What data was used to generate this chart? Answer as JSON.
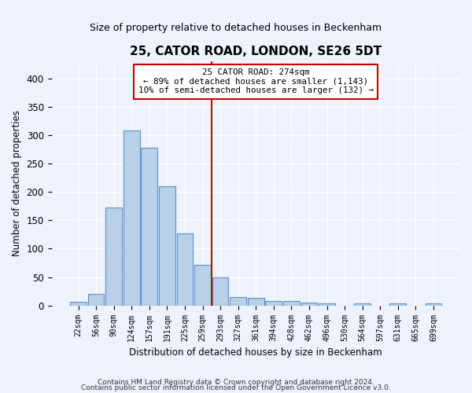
{
  "title": "25, CATOR ROAD, LONDON, SE26 5DT",
  "subtitle": "Size of property relative to detached houses in Beckenham",
  "xlabel": "Distribution of detached houses by size in Beckenham",
  "ylabel": "Number of detached properties",
  "bin_labels": [
    "22sqm",
    "56sqm",
    "90sqm",
    "124sqm",
    "157sqm",
    "191sqm",
    "225sqm",
    "259sqm",
    "293sqm",
    "327sqm",
    "361sqm",
    "394sqm",
    "428sqm",
    "462sqm",
    "496sqm",
    "530sqm",
    "564sqm",
    "597sqm",
    "631sqm",
    "665sqm",
    "699sqm"
  ],
  "bar_heights": [
    7,
    21,
    173,
    308,
    277,
    210,
    127,
    72,
    49,
    15,
    13,
    8,
    8,
    5,
    4,
    0,
    4,
    0,
    4,
    0,
    4
  ],
  "bar_color": "#b8d0e8",
  "bar_edge_color": "#5b8fc9",
  "vline_pos": 7.5,
  "vline_color": "#cc0000",
  "ylim": [
    0,
    430
  ],
  "yticks": [
    0,
    50,
    100,
    150,
    200,
    250,
    300,
    350,
    400
  ],
  "annotation_title": "25 CATOR ROAD: 274sqm",
  "annotation_line1": "← 89% of detached houses are smaller (1,143)",
  "annotation_line2": "10% of semi-detached houses are larger (132) →",
  "footer_line1": "Contains HM Land Registry data © Crown copyright and database right 2024.",
  "footer_line2": "Contains public sector information licensed under the Open Government Licence v3.0.",
  "background_color": "#edf2fb",
  "plot_background": "#edf2fb",
  "grid_color": "#ffffff"
}
